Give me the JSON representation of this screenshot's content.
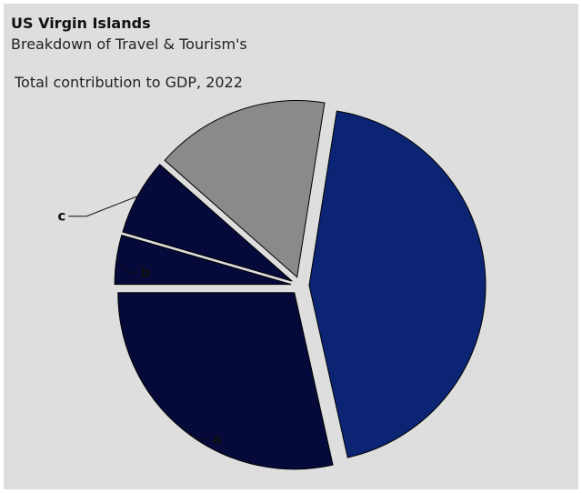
{
  "chart_data": {
    "type": "pie",
    "title": "US Virgin Islands",
    "subtitle_lines": [
      "Breakdown of Travel & Tourism's",
      "Total contribution to GDP, 2022"
    ],
    "slices": [
      {
        "label": "",
        "value": 44,
        "color": "#0b2474"
      },
      {
        "label": "a",
        "value": 28.5,
        "color": "#050a3a"
      },
      {
        "label": "b",
        "value": 4.5,
        "color": "#050a3a"
      },
      {
        "label": "c",
        "value": 7,
        "color": "#050a3a"
      },
      {
        "label": "",
        "value": 16,
        "color": "#8a8a8a"
      }
    ]
  }
}
